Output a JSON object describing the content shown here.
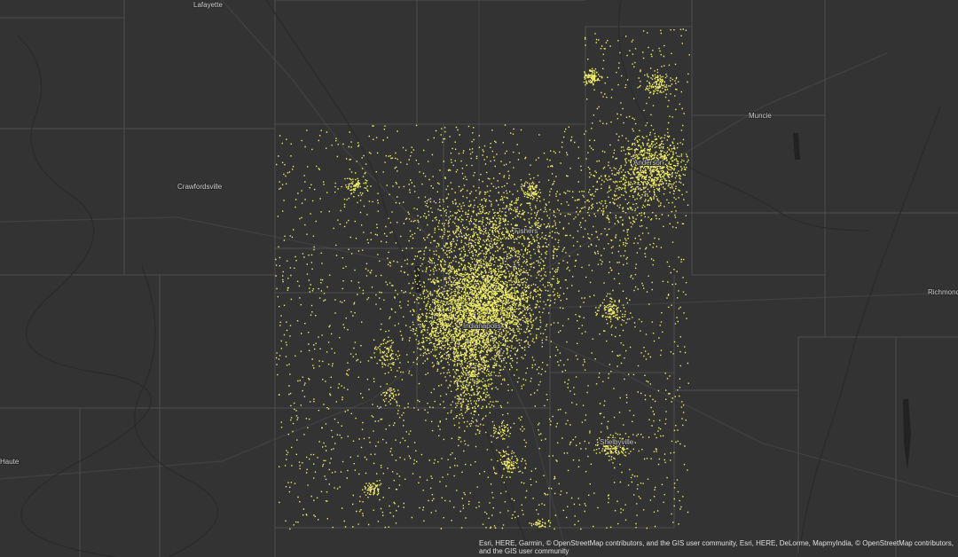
{
  "map": {
    "labels": [
      "Lafayette",
      "Crawfordsville",
      "Muncie",
      "Fishers",
      "Indianapolis",
      "Anderson",
      "Shelbyville",
      "Richmond",
      "Haute"
    ],
    "attribution": "Esri, HERE, Garmin, © OpenStreetMap contributors, and the GIS user community, Esri, HERE, DeLorme, MapmyIndia, © OpenStreetMap contributors, and the GIS user community"
  }
}
